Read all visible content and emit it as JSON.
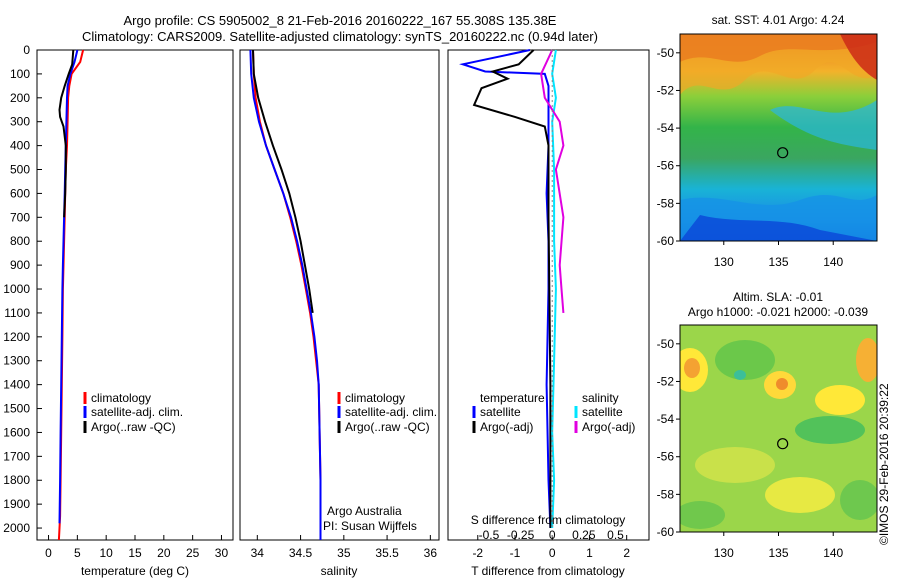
{
  "header": {
    "line1": "Argo profile: CS 5905002_8 21-Feb-2016 20160222_167 55.308S 135.38E",
    "line2": "Climatology: CARS2009. Satellite-adjusted climatology: synTS_20160222.nc (0.94d later)"
  },
  "credit": {
    "line1": "Argo Australia",
    "line2": "PI: Susan Wijffels"
  },
  "footer": "©IMOS 29-Feb-2016 20:39:22",
  "colors": {
    "climatology": "#ff0000",
    "satellite": "#0000ff",
    "argo": "#000000",
    "cyan": "#00e5ff",
    "magenta": "#e000e0"
  },
  "legend": {
    "climatology": "climatology",
    "satellite_clim": "satellite-adj. clim.",
    "argo_raw": "Argo(..raw -QC)",
    "temperature": "temperature",
    "salinity": "salinity",
    "satellite": "satellite",
    "argo_adj": "Argo(-adj)"
  },
  "chart_data": [
    {
      "id": "temperature",
      "type": "line",
      "xlabel": "temperature (deg C)",
      "ylabel": "",
      "xlim": [
        -2,
        32
      ],
      "ylim": [
        2050,
        0
      ],
      "xticks": [
        0,
        5,
        10,
        15,
        20,
        25,
        30
      ],
      "yticks": [
        0,
        100,
        200,
        300,
        400,
        500,
        600,
        700,
        800,
        900,
        1000,
        1100,
        1200,
        1300,
        1400,
        1500,
        1600,
        1700,
        1800,
        1900,
        2000
      ],
      "series": [
        {
          "name": "climatology",
          "color": "#ff0000",
          "x": [
            6.0,
            5.5,
            4.0,
            3.6,
            3.4,
            3.3,
            3.2,
            3.0,
            2.9,
            2.8,
            2.7,
            2.6,
            2.5,
            2.4,
            2.3,
            2.2,
            2.1,
            2.0,
            1.8
          ],
          "y": [
            0,
            50,
            100,
            150,
            200,
            300,
            400,
            500,
            600,
            700,
            800,
            900,
            1000,
            1200,
            1400,
            1600,
            1800,
            1950,
            2050
          ]
        },
        {
          "name": "satellite-adj. clim.",
          "color": "#0000ff",
          "x": [
            5.0,
            4.5,
            3.8,
            3.3,
            3.2,
            3.1,
            3.0,
            2.9,
            2.8,
            2.7,
            2.6,
            2.5,
            2.4,
            2.3,
            2.2,
            2.1,
            2.0,
            1.9
          ],
          "y": [
            0,
            50,
            100,
            150,
            200,
            300,
            400,
            500,
            600,
            700,
            800,
            900,
            1000,
            1200,
            1400,
            1600,
            1800,
            1980
          ]
        },
        {
          "name": "Argo(..raw -QC)",
          "color": "#000000",
          "x": [
            4.3,
            4.1,
            3.5,
            2.8,
            2.2,
            1.9,
            2.0,
            2.6,
            3.0,
            3.0,
            2.9,
            2.7
          ],
          "y": [
            0,
            60,
            100,
            150,
            200,
            250,
            280,
            320,
            400,
            500,
            600,
            700
          ]
        }
      ]
    },
    {
      "id": "salinity",
      "type": "line",
      "xlabel": "salinity",
      "xlim": [
        33.8,
        36.1
      ],
      "ylim": [
        2050,
        0
      ],
      "xticks": [
        34,
        34.5,
        35,
        35.5,
        36
      ],
      "series": [
        {
          "name": "climatology",
          "color": "#ff0000",
          "x": [
            33.95,
            33.96,
            33.98,
            34.03,
            34.1,
            34.2,
            34.3,
            34.38,
            34.45,
            34.51,
            34.56,
            34.61,
            34.65,
            34.68,
            34.71,
            34.72,
            34.73,
            34.73,
            34.73
          ],
          "y": [
            0,
            100,
            200,
            300,
            400,
            500,
            600,
            700,
            800,
            900,
            1000,
            1100,
            1200,
            1300,
            1400,
            1600,
            1800,
            2000,
            2050
          ]
        },
        {
          "name": "satellite-adj. clim.",
          "color": "#0000ff",
          "x": [
            33.92,
            33.93,
            33.96,
            34.02,
            34.1,
            34.2,
            34.3,
            34.39,
            34.46,
            34.52,
            34.57,
            34.62,
            34.66,
            34.69,
            34.71,
            34.72,
            34.73,
            34.73,
            34.73
          ],
          "y": [
            0,
            100,
            200,
            300,
            400,
            500,
            600,
            700,
            800,
            900,
            1000,
            1100,
            1200,
            1300,
            1400,
            1600,
            1800,
            2000,
            2050
          ]
        },
        {
          "name": "Argo(..raw -QC)",
          "color": "#000000",
          "x": [
            33.95,
            33.96,
            34.01,
            34.09,
            34.18,
            34.28,
            34.37,
            34.44,
            34.5,
            34.55,
            34.6,
            34.64
          ],
          "y": [
            0,
            100,
            200,
            300,
            400,
            500,
            600,
            700,
            800,
            900,
            1000,
            1100
          ]
        }
      ]
    },
    {
      "id": "difference",
      "type": "line",
      "xlabel": "T difference from climatology",
      "title_bottom": "S difference from climatology",
      "xlim": [
        -2.8,
        2.6
      ],
      "ylim": [
        2050,
        0
      ],
      "xticks_T": [
        -2,
        -1,
        0,
        1,
        2
      ],
      "xticks_S": [
        "-0.5",
        "-0.25",
        "0",
        "0.25",
        "0.5"
      ],
      "series": [
        {
          "name": "temperature satellite",
          "color": "#0000ff",
          "x": [
            -0.6,
            -2.4,
            -1.8,
            -0.2,
            -0.1,
            -0.1,
            -0.1,
            -0.1,
            -0.15,
            -0.1,
            -0.1,
            -0.15,
            -0.1,
            -0.05
          ],
          "y": [
            0,
            60,
            90,
            100,
            150,
            200,
            300,
            400,
            600,
            800,
            1000,
            1400,
            1800,
            2000
          ]
        },
        {
          "name": "temperature Argo(-adj)",
          "color": "#000000",
          "x": [
            -0.5,
            -0.9,
            -1.6,
            -1.2,
            -1.9,
            -2.1,
            -1.0,
            -0.2,
            -0.1,
            -0.1,
            -0.05,
            -0.05
          ],
          "y": [
            0,
            60,
            90,
            120,
            160,
            230,
            280,
            320,
            400,
            700,
            1400,
            2000
          ]
        },
        {
          "name": "salinity satellite",
          "color": "#00e5ff",
          "x": [
            0.1,
            0.0,
            0.1,
            0.0,
            0.05,
            0.05,
            0.1,
            0.05,
            0.0,
            0.05,
            0.0
          ],
          "y": [
            0,
            100,
            200,
            300,
            500,
            800,
            1000,
            1300,
            1600,
            1800,
            2000
          ]
        },
        {
          "name": "salinity Argo(-adj)",
          "color": "#e000e0",
          "x": [
            0.0,
            -0.3,
            -0.2,
            0.2,
            0.3,
            0.1,
            0.3,
            0.2,
            0.25,
            0.3
          ],
          "y": [
            0,
            100,
            200,
            300,
            400,
            500,
            700,
            900,
            1000,
            1100
          ]
        }
      ]
    },
    {
      "id": "sst_map",
      "type": "heatmap",
      "title": "sat. SST: 4.01 Argo: 4.24",
      "xlim": [
        126,
        144
      ],
      "ylim": [
        -60,
        -49
      ],
      "xticks": [
        130,
        135,
        140
      ],
      "yticks": [
        -50,
        -52,
        -54,
        -56,
        -58,
        -60
      ],
      "marker": [
        135.38,
        -55.308
      ]
    },
    {
      "id": "sla_map",
      "type": "heatmap",
      "title": "Altim. SLA: -0.01",
      "subtitle": "Argo h1000: -0.021 h2000: -0.039",
      "xlim": [
        126,
        144
      ],
      "ylim": [
        -60,
        -49
      ],
      "xticks": [
        130,
        135,
        140
      ],
      "yticks": [
        -50,
        -52,
        -54,
        -56,
        -58,
        -60
      ],
      "marker": [
        135.38,
        -55.308
      ]
    }
  ]
}
